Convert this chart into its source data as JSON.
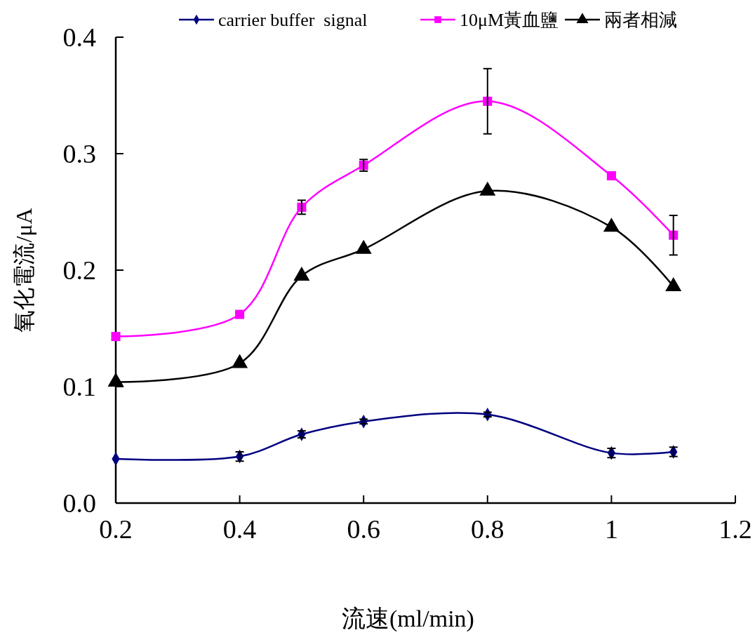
{
  "chart_data": {
    "type": "line",
    "xlabel": "流速(ml/min)",
    "ylabel": "氧化電流/μA",
    "x": [
      0.2,
      0.4,
      0.5,
      0.6,
      0.8,
      1.0,
      1.1
    ],
    "series": [
      {
        "name": "carrier buffer  signal",
        "color": "#000080",
        "marker": "diamond",
        "values": [
          0.038,
          0.04,
          0.059,
          0.07,
          0.076,
          0.043,
          0.044
        ],
        "errors": [
          null,
          0.004,
          0.003,
          0.002,
          0.002,
          0.004,
          0.004
        ]
      },
      {
        "name": "10μM黃血鹽",
        "color": "#ff00ff",
        "marker": "square",
        "values": [
          0.143,
          0.162,
          0.254,
          0.29,
          0.345,
          0.281,
          0.23
        ],
        "errors": [
          null,
          null,
          0.006,
          0.005,
          0.028,
          null,
          0.017
        ]
      },
      {
        "name": "兩者相減",
        "color": "#000000",
        "marker": "triangle",
        "values": [
          0.104,
          0.12,
          0.195,
          0.218,
          0.268,
          0.237,
          0.186
        ]
      }
    ],
    "xlim": [
      0.2,
      1.2
    ],
    "xticks": [
      {
        "value": 0.2,
        "label": "0.2"
      },
      {
        "value": 0.4,
        "label": "0.4"
      },
      {
        "value": 0.6,
        "label": "0.6"
      },
      {
        "value": 0.8,
        "label": "0.8"
      },
      {
        "value": 1,
        "label": "1"
      },
      {
        "value": 1.2,
        "label": "1.2"
      }
    ],
    "ylim": [
      0,
      0.4
    ],
    "yticks": [
      {
        "value": 0,
        "label": "0.0"
      },
      {
        "value": 0.1,
        "label": "0.1"
      },
      {
        "value": 0.2,
        "label": "0.2"
      },
      {
        "value": 0.3,
        "label": "0.3"
      },
      {
        "value": 0.4,
        "label": "0.4"
      }
    ],
    "grid": false,
    "legend": "top",
    "line_style": "solid"
  }
}
